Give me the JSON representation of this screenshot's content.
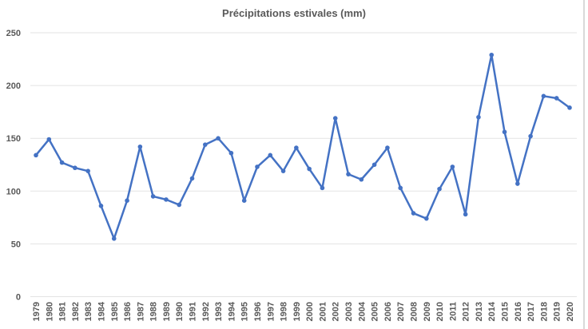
{
  "chart_data": {
    "type": "line",
    "title": "Précipitations estivales (mm)",
    "xlabel": "",
    "ylabel": "",
    "ylim": [
      0,
      250
    ],
    "yticks": [
      0,
      50,
      100,
      150,
      200,
      250
    ],
    "grid": true,
    "legend": "none",
    "color": "#4472c4",
    "categories": [
      "1979",
      "1980",
      "1981",
      "1982",
      "1983",
      "1984",
      "1985",
      "1986",
      "1987",
      "1988",
      "1989",
      "1990",
      "1991",
      "1992",
      "1993",
      "1994",
      "1995",
      "1996",
      "1997",
      "1998",
      "1999",
      "2000",
      "2001",
      "2002",
      "2003",
      "2004",
      "2005",
      "2006",
      "2007",
      "2008",
      "2009",
      "2010",
      "2011",
      "2012",
      "2013",
      "2014",
      "2015",
      "2016",
      "2017",
      "2018",
      "2019",
      "2020"
    ],
    "series": [
      {
        "name": "Précipitations estivales (mm)",
        "values": [
          134,
          149,
          127,
          122,
          119,
          86,
          55,
          91,
          142,
          95,
          92,
          87,
          112,
          144,
          150,
          136,
          91,
          123,
          134,
          119,
          141,
          121,
          103,
          169,
          116,
          111,
          125,
          141,
          103,
          79,
          74,
          102,
          123,
          78,
          170,
          229,
          156,
          107,
          152,
          190,
          188,
          179
        ]
      }
    ]
  }
}
